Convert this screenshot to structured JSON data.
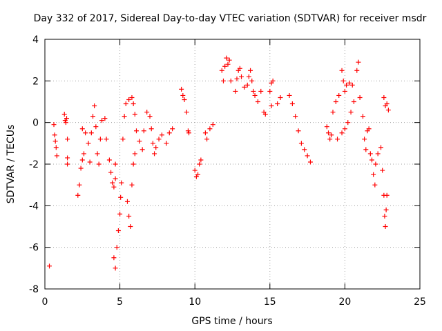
{
  "chart_data": {
    "type": "scatter",
    "title": "Day 332 of 2017, Sidereal Day-to-day VTEC variation (SDTVAR) for receiver msdr",
    "xlabel": "GPS time / hours",
    "ylabel": "SDTVAR / TECUs",
    "xlim": [
      0,
      25
    ],
    "ylim": [
      -8,
      4
    ],
    "xticks": [
      0,
      5,
      10,
      15,
      20,
      25
    ],
    "yticks": [
      -8,
      -6,
      -4,
      -2,
      0,
      2,
      4
    ],
    "xtick_labels": [
      "0",
      "5",
      "10",
      "15",
      "20",
      "25"
    ],
    "ytick_labels": [
      "-8",
      "-6",
      "-4",
      "-2",
      "0",
      "2",
      "4"
    ],
    "grid": true,
    "marker": "+",
    "color": "#ff0000",
    "series": [
      {
        "name": "SDTVAR",
        "points": [
          [
            0.3,
            -6.9
          ],
          [
            0.6,
            -0.1
          ],
          [
            0.65,
            -0.6
          ],
          [
            0.7,
            -0.9
          ],
          [
            0.75,
            -1.2
          ],
          [
            0.8,
            -1.6
          ],
          [
            1.3,
            0.4
          ],
          [
            1.35,
            0.1
          ],
          [
            1.4,
            0.0
          ],
          [
            1.45,
            0.2
          ],
          [
            1.5,
            -0.8
          ],
          [
            1.5,
            -1.7
          ],
          [
            1.5,
            -2.0
          ],
          [
            2.2,
            -3.5
          ],
          [
            2.3,
            -3.0
          ],
          [
            2.4,
            -2.2
          ],
          [
            2.5,
            -1.8
          ],
          [
            2.6,
            -1.5
          ],
          [
            2.5,
            -0.3
          ],
          [
            2.7,
            -0.5
          ],
          [
            2.9,
            -1.0
          ],
          [
            3.0,
            -1.9
          ],
          [
            3.1,
            -0.5
          ],
          [
            3.2,
            0.3
          ],
          [
            3.3,
            0.8
          ],
          [
            3.4,
            -0.2
          ],
          [
            3.5,
            -1.5
          ],
          [
            3.6,
            -2.0
          ],
          [
            3.7,
            -0.8
          ],
          [
            3.8,
            0.1
          ],
          [
            4.0,
            0.2
          ],
          [
            4.1,
            -0.8
          ],
          [
            4.3,
            -1.8
          ],
          [
            4.4,
            -2.4
          ],
          [
            4.5,
            -2.9
          ],
          [
            4.6,
            -3.1
          ],
          [
            4.7,
            -2.7
          ],
          [
            4.7,
            -2.0
          ],
          [
            4.6,
            -6.5
          ],
          [
            4.7,
            -7.0
          ],
          [
            4.8,
            -6.0
          ],
          [
            4.9,
            -5.2
          ],
          [
            5.0,
            -4.4
          ],
          [
            5.05,
            -3.6
          ],
          [
            5.1,
            -2.9
          ],
          [
            5.2,
            -0.8
          ],
          [
            5.3,
            0.3
          ],
          [
            5.4,
            0.9
          ],
          [
            5.6,
            1.1
          ],
          [
            5.8,
            1.2
          ],
          [
            5.9,
            0.9
          ],
          [
            5.5,
            -3.8
          ],
          [
            5.6,
            -4.5
          ],
          [
            5.7,
            -5.0
          ],
          [
            5.8,
            -3.0
          ],
          [
            5.9,
            -2.0
          ],
          [
            6.0,
            -1.5
          ],
          [
            6.1,
            -0.4
          ],
          [
            6.0,
            0.4
          ],
          [
            6.3,
            -0.9
          ],
          [
            6.5,
            -1.3
          ],
          [
            6.6,
            -0.4
          ],
          [
            6.8,
            0.5
          ],
          [
            7.0,
            0.3
          ],
          [
            7.1,
            -0.3
          ],
          [
            7.2,
            -1.0
          ],
          [
            7.3,
            -1.5
          ],
          [
            7.4,
            -1.2
          ],
          [
            7.6,
            -0.8
          ],
          [
            7.8,
            -0.6
          ],
          [
            8.1,
            -1.0
          ],
          [
            8.3,
            -0.5
          ],
          [
            8.5,
            -0.3
          ],
          [
            9.1,
            1.6
          ],
          [
            9.2,
            1.3
          ],
          [
            9.3,
            1.1
          ],
          [
            9.45,
            0.5
          ],
          [
            9.55,
            -0.4
          ],
          [
            9.6,
            -0.5
          ],
          [
            10.0,
            -2.3
          ],
          [
            10.1,
            -2.6
          ],
          [
            10.2,
            -2.5
          ],
          [
            10.3,
            -2.0
          ],
          [
            10.4,
            -1.8
          ],
          [
            10.7,
            -0.5
          ],
          [
            10.8,
            -0.8
          ],
          [
            11.0,
            -0.3
          ],
          [
            11.2,
            -0.1
          ],
          [
            11.8,
            2.5
          ],
          [
            11.9,
            2.0
          ],
          [
            12.0,
            2.7
          ],
          [
            12.1,
            3.1
          ],
          [
            12.2,
            2.8
          ],
          [
            12.3,
            3.0
          ],
          [
            12.4,
            2.0
          ],
          [
            12.7,
            1.5
          ],
          [
            12.8,
            2.1
          ],
          [
            12.9,
            2.5
          ],
          [
            13.0,
            2.6
          ],
          [
            13.1,
            2.2
          ],
          [
            13.3,
            1.7
          ],
          [
            13.5,
            1.8
          ],
          [
            13.6,
            2.2
          ],
          [
            13.7,
            2.5
          ],
          [
            13.8,
            2.0
          ],
          [
            13.9,
            1.5
          ],
          [
            14.0,
            1.3
          ],
          [
            14.2,
            1.0
          ],
          [
            14.4,
            1.5
          ],
          [
            14.6,
            0.5
          ],
          [
            14.7,
            0.4
          ],
          [
            15.0,
            1.5
          ],
          [
            15.1,
            1.9
          ],
          [
            15.2,
            2.0
          ],
          [
            15.1,
            0.8
          ],
          [
            15.5,
            0.9
          ],
          [
            15.7,
            1.2
          ],
          [
            16.3,
            1.3
          ],
          [
            16.5,
            0.9
          ],
          [
            16.7,
            0.3
          ],
          [
            16.9,
            -0.4
          ],
          [
            17.1,
            -1.0
          ],
          [
            17.3,
            -1.3
          ],
          [
            17.5,
            -1.6
          ],
          [
            17.7,
            -1.9
          ],
          [
            18.8,
            -0.2
          ],
          [
            18.9,
            -0.5
          ],
          [
            19.0,
            -0.8
          ],
          [
            19.1,
            -0.6
          ],
          [
            19.2,
            0.5
          ],
          [
            19.4,
            1.0
          ],
          [
            19.6,
            1.3
          ],
          [
            19.8,
            2.5
          ],
          [
            19.9,
            2.0
          ],
          [
            20.0,
            1.5
          ],
          [
            20.1,
            1.8
          ],
          [
            20.3,
            1.9
          ],
          [
            20.5,
            1.8
          ],
          [
            19.5,
            -0.8
          ],
          [
            19.8,
            -0.5
          ],
          [
            20.0,
            -0.3
          ],
          [
            20.2,
            0.0
          ],
          [
            20.4,
            0.5
          ],
          [
            20.6,
            1.0
          ],
          [
            20.8,
            2.5
          ],
          [
            20.9,
            2.9
          ],
          [
            21.0,
            1.2
          ],
          [
            21.2,
            0.3
          ],
          [
            21.3,
            -0.8
          ],
          [
            21.4,
            -1.3
          ],
          [
            21.5,
            -0.4
          ],
          [
            21.6,
            -0.3
          ],
          [
            21.7,
            -1.5
          ],
          [
            21.8,
            -1.8
          ],
          [
            21.9,
            -2.5
          ],
          [
            22.0,
            -3.0
          ],
          [
            22.05,
            -2.0
          ],
          [
            22.2,
            -1.5
          ],
          [
            22.4,
            -1.2
          ],
          [
            22.5,
            -2.3
          ],
          [
            22.6,
            -3.5
          ],
          [
            22.65,
            -4.5
          ],
          [
            22.7,
            -5.0
          ],
          [
            22.75,
            -4.2
          ],
          [
            22.8,
            -3.5
          ],
          [
            22.6,
            1.2
          ],
          [
            22.7,
            0.8
          ],
          [
            22.8,
            0.9
          ],
          [
            22.9,
            0.6
          ]
        ]
      }
    ]
  }
}
